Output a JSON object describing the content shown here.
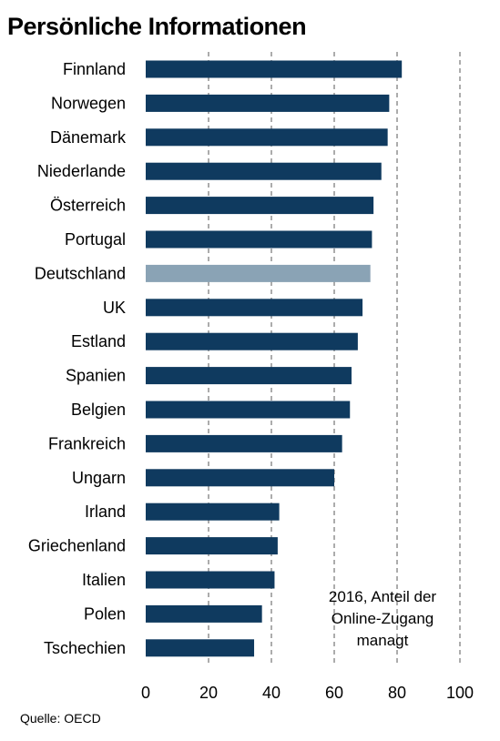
{
  "chart_data": {
    "type": "bar",
    "orientation": "horizontal",
    "title": "Persönliche Informationen",
    "categories": [
      "Finnland",
      "Norwegen",
      "Dänemark",
      "Niederlande",
      "Österreich",
      "Portugal",
      "Deutschland",
      "UK",
      "Estland",
      "Spanien",
      "Belgien",
      "Frankreich",
      "Ungarn",
      "Irland",
      "Griechenland",
      "Italien",
      "Polen",
      "Tschechien"
    ],
    "values": [
      81.5,
      77.5,
      77,
      75,
      72.5,
      72,
      71.5,
      69,
      67.5,
      65.5,
      65,
      62.5,
      60,
      42.5,
      42,
      41,
      37,
      34.5
    ],
    "highlight": "Deutschland",
    "xlim": [
      0,
      100
    ],
    "xticks": [
      0,
      20,
      40,
      60,
      80,
      100
    ],
    "grid": "vertical dashed",
    "annotation": [
      "2016, Anteil der",
      "Online-Zugang",
      "managt"
    ],
    "source": "Quelle: OECD",
    "colors": {
      "bar": "#0f3a5f",
      "highlight": "#8aa3b5",
      "grid": "#7f7f7f"
    }
  }
}
